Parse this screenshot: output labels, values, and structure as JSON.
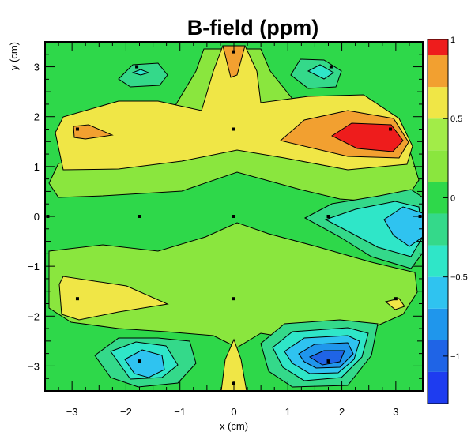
{
  "chart_data": {
    "type": "heatmap",
    "title": "B-field (ppm)",
    "xlabel": "x (cm)",
    "ylabel": "y (cm)",
    "xlim": [
      -3.5,
      3.5
    ],
    "ylim": [
      -3.5,
      3.5
    ],
    "x_ticks": [
      "−3",
      "−2",
      "−1",
      "0",
      "1",
      "2",
      "3"
    ],
    "y_ticks": [
      "−3",
      "−2",
      "−1",
      "0",
      "1",
      "2",
      "3"
    ],
    "zlim": [
      -1.3,
      1.0
    ],
    "z_tick_labels": [
      "−1",
      "−0.5",
      "0",
      "0.5",
      "1"
    ],
    "color_levels": [
      {
        "from": -1.3,
        "to": -1.1,
        "color": "#1e3cf0"
      },
      {
        "from": -1.1,
        "to": -0.9,
        "color": "#1f64e6"
      },
      {
        "from": -0.9,
        "to": -0.7,
        "color": "#1f96ec"
      },
      {
        "from": -0.7,
        "to": -0.5,
        "color": "#2fc3f0"
      },
      {
        "from": -0.5,
        "to": -0.3,
        "color": "#2fe6c8"
      },
      {
        "from": -0.3,
        "to": -0.1,
        "color": "#34d98a"
      },
      {
        "from": -0.1,
        "to": 0.1,
        "color": "#2ed84a"
      },
      {
        "from": 0.1,
        "to": 0.3,
        "color": "#8ae63e"
      },
      {
        "from": 0.3,
        "to": 0.5,
        "color": "#a2ec48"
      },
      {
        "from": 0.5,
        "to": 0.7,
        "color": "#f0e646"
      },
      {
        "from": 0.7,
        "to": 0.9,
        "color": "#f2a030"
      },
      {
        "from": 0.9,
        "to": 1.0,
        "color": "#ee1c1c"
      }
    ],
    "measurement_points": [
      [
        -3.45,
        0
      ],
      [
        -1.75,
        0
      ],
      [
        0,
        0
      ],
      [
        1.75,
        0
      ],
      [
        3.45,
        0
      ],
      [
        -2.9,
        1.75
      ],
      [
        0,
        1.75
      ],
      [
        2.9,
        1.75
      ],
      [
        -2.9,
        -1.65
      ],
      [
        0,
        -1.65
      ],
      [
        3.0,
        -1.65
      ],
      [
        -1.8,
        3.0
      ],
      [
        0,
        3.3
      ],
      [
        1.8,
        3.0
      ],
      [
        -1.75,
        -2.9
      ],
      [
        0,
        -3.35
      ],
      [
        1.75,
        -2.9
      ]
    ]
  }
}
